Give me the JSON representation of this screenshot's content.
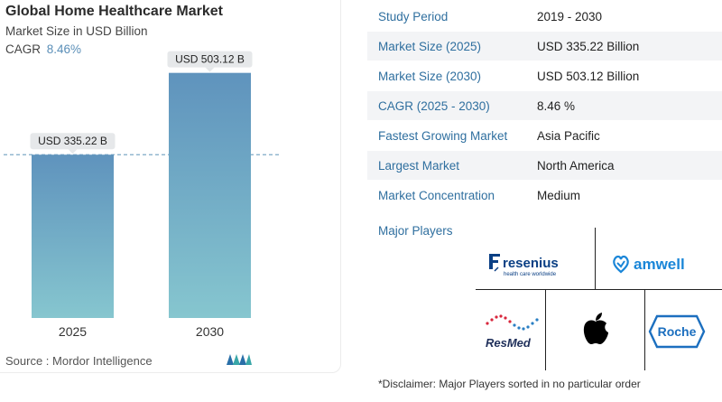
{
  "chart_data": {
    "type": "bar",
    "title": "Global Home Healthcare Market",
    "subtitle": "Market Size in USD Billion",
    "cagr_label": "CAGR",
    "cagr_value": "8.46%",
    "categories": [
      "2025",
      "2030"
    ],
    "values": [
      335.22,
      503.12
    ],
    "data_labels": [
      "USD 335.22 B",
      "USD 503.12 B"
    ],
    "ylim": [
      0,
      560
    ],
    "grid": false,
    "reference_line_at": 335.22,
    "colors": {
      "bar_top": "#5f93bd",
      "bar_bottom": "#86c6cf",
      "reference": "#7fa9c6"
    }
  },
  "source": "Source :  Mordor Intelligence",
  "info": [
    {
      "label": "Study Period",
      "value": "2019 - 2030"
    },
    {
      "label": "Market Size (2025)",
      "value": "USD 335.22 Billion"
    },
    {
      "label": "Market Size (2030)",
      "value": "USD 503.12 Billion"
    },
    {
      "label": "CAGR (2025 - 2030)",
      "value": "8.46 %"
    },
    {
      "label": "Fastest Growing Market",
      "value": "Asia Pacific"
    },
    {
      "label": "Largest Market",
      "value": "North America"
    },
    {
      "label": "Market Concentration",
      "value": "Medium"
    }
  ],
  "players": {
    "title": "Major Players",
    "logos": [
      "Fresenius",
      "amwell",
      "ResMed",
      "Apple",
      "Roche"
    ],
    "fresenius_tagline": "health care worldwide"
  },
  "disclaimer": "*Disclaimer: Major Players sorted in no particular order"
}
